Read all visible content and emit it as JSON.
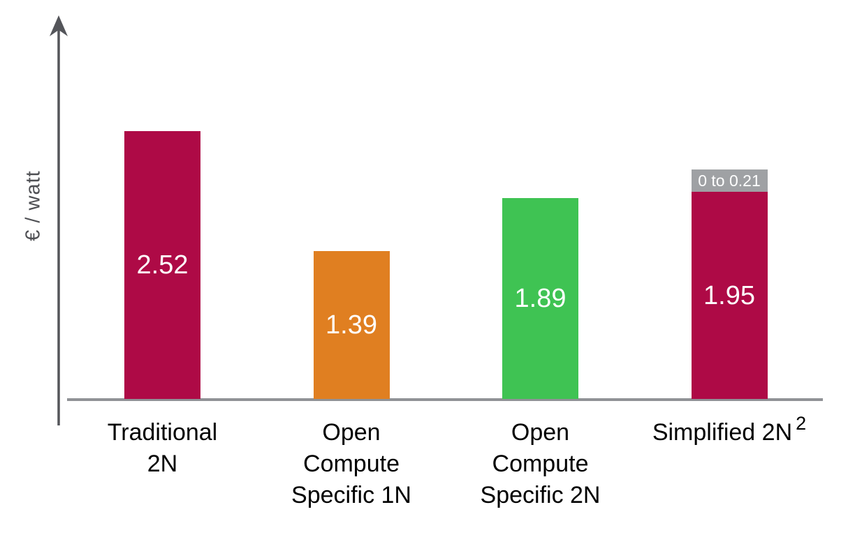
{
  "chart_data": {
    "type": "bar",
    "title": "",
    "xlabel": "",
    "ylabel": "€ / watt",
    "categories": [
      "Traditional\n2N",
      "Open\nCompute\nSpecific 1N",
      "Open\nCompute\nSpecific 2N",
      "Simplified 2N"
    ],
    "category_superscripts": [
      "",
      "",
      "",
      "2"
    ],
    "values": [
      2.52,
      1.39,
      1.89,
      1.95
    ],
    "data_labels": [
      "2.52",
      "1.39",
      "1.89",
      "1.95"
    ],
    "bar_colors": [
      "#AE0A46",
      "#E07F21",
      "#3FC353",
      "#AE0A46"
    ],
    "stacked_extra": {
      "bar_index": 3,
      "label": "0 to 0.21",
      "value": 0.21,
      "color": "#9FA1A4",
      "text_color": "#FFFFFF"
    },
    "value_label_color": "#FFFFFF",
    "axis_color": "#909296",
    "y_axis_color": "#54555A",
    "ylim": [
      0,
      3.6
    ],
    "grid": false,
    "legend": "none"
  }
}
